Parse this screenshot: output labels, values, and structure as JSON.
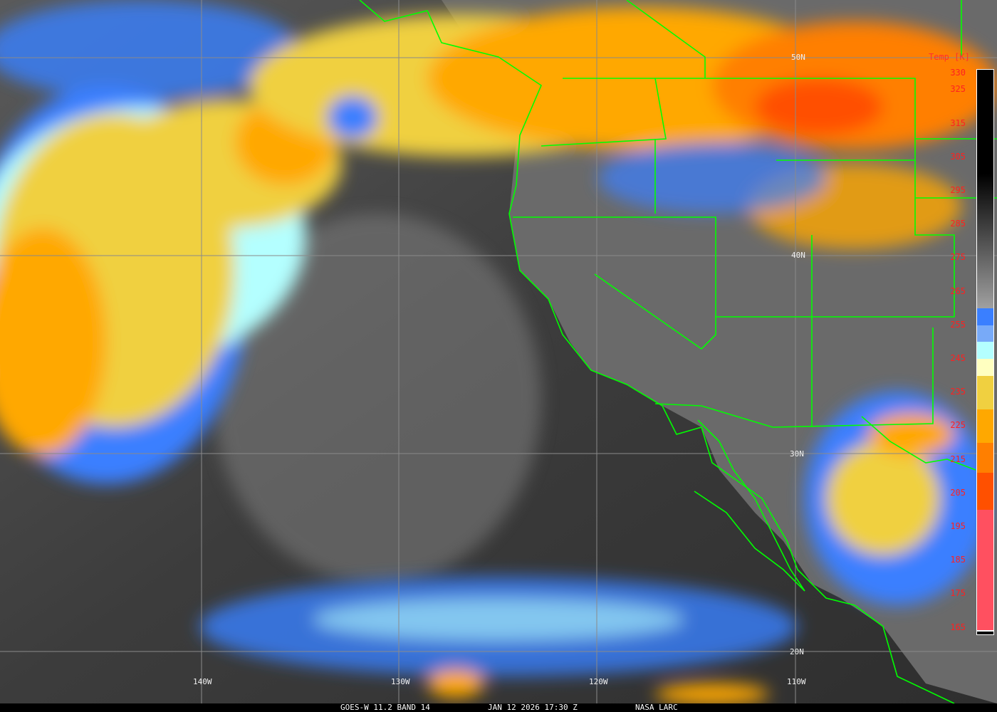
{
  "map": {
    "latitude_labels": [
      "50N",
      "40N",
      "30N",
      "20N"
    ],
    "longitude_labels": [
      "140W",
      "130W",
      "120W",
      "110W"
    ],
    "colors": {
      "ocean_clear": "#3a3a3a",
      "land": "#6e6e6e",
      "border": "#00ff00",
      "graticule": "#8a8a8a"
    }
  },
  "colorbar": {
    "title": "Temp [K]",
    "ticks": [
      "330",
      "325",
      "315",
      "305",
      "295",
      "285",
      "275",
      "265",
      "255",
      "245",
      "235",
      "225",
      "215",
      "205",
      "195",
      "185",
      "175",
      "165"
    ],
    "segments": [
      {
        "from_k": 330,
        "to_k": 300,
        "color": "#000000"
      },
      {
        "from_k": 300,
        "to_k": 260,
        "color": "gradient #000000 to #a0a0a0"
      },
      {
        "from_k": 260,
        "to_k": 255,
        "color": "#3a7fff"
      },
      {
        "from_k": 255,
        "to_k": 250,
        "color": "#78aaf8"
      },
      {
        "from_k": 250,
        "to_k": 245,
        "color": "#b4ffff"
      },
      {
        "from_k": 245,
        "to_k": 240,
        "color": "#ffffc0"
      },
      {
        "from_k": 240,
        "to_k": 230,
        "color": "#f0d040"
      },
      {
        "from_k": 230,
        "to_k": 220,
        "color": "#ffa800"
      },
      {
        "from_k": 220,
        "to_k": 211,
        "color": "#ff7f00"
      },
      {
        "from_k": 211,
        "to_k": 200,
        "color": "#ff5000"
      },
      {
        "from_k": 200,
        "to_k": 164,
        "color": "#ff5060"
      }
    ]
  },
  "caption": {
    "satellite": "GOES-W 11.2 BAND 14",
    "datetime": "JAN 12 2026 17:30 Z",
    "source": "NASA LARC"
  }
}
